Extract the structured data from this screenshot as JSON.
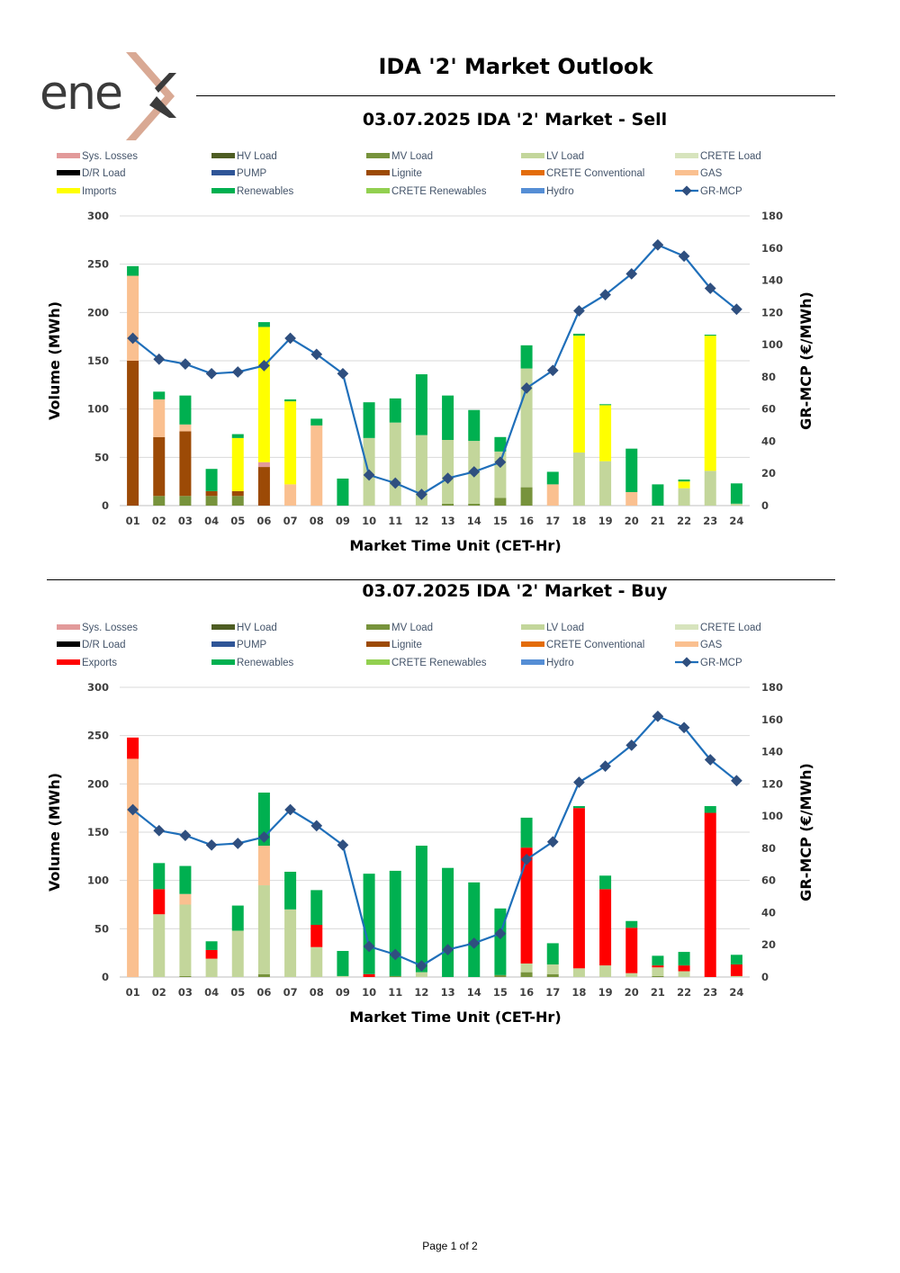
{
  "page": {
    "title": "IDA '2' Market Outlook",
    "logo_text": "enex",
    "footer": "Page 1 of 2"
  },
  "colors": {
    "Sys. Losses": "#e29a9a",
    "HV Load": "#4e5d23",
    "MV Load": "#77933c",
    "LV Load": "#c3d69b",
    "CRETE Load": "#d7e4bd",
    "D/R Load": "#000000",
    "PUMP": "#2f5597",
    "Lignite": "#9c4a06",
    "CRETE Conventional": "#e36c0a",
    "GAS": "#fac090",
    "Imports": "#ffff00",
    "Exports": "#ff0000",
    "Renewables": "#00b050",
    "CRETE Renewables": "#92d050",
    "Hydro": "#558ed5",
    "GR-MCP": "#1f6fba",
    "GR-MCP-marker": "#2f4f7f"
  },
  "chart_data": [
    {
      "type": "bar",
      "stacked": true,
      "title": "03.07.2025  IDA '2' Market - Sell",
      "legend": [
        "Sys. Losses",
        "HV Load",
        "MV Load",
        "LV Load",
        "CRETE Load",
        "D/R Load",
        "PUMP",
        "Lignite",
        "CRETE Conventional",
        "GAS",
        "Imports",
        "Renewables",
        "CRETE Renewables",
        "Hydro",
        "GR-MCP"
      ],
      "categories": [
        "01",
        "02",
        "03",
        "04",
        "05",
        "06",
        "07",
        "08",
        "09",
        "10",
        "11",
        "12",
        "13",
        "14",
        "15",
        "16",
        "17",
        "18",
        "19",
        "20",
        "21",
        "22",
        "23",
        "24"
      ],
      "xlabel": "Market Time Unit (CET-Hr)",
      "ylabel": "Volume (MWh)",
      "y2label": "GR-MCP (€/MWh)",
      "ylim": [
        0,
        300
      ],
      "yticks": [
        "0",
        "50",
        "100",
        "150",
        "200",
        "250",
        "300"
      ],
      "y2lim": [
        0,
        180
      ],
      "y2ticks": [
        "0",
        "20",
        "40",
        "60",
        "80",
        "100",
        "120",
        "140",
        "160",
        "180"
      ],
      "series": [
        {
          "name": "MV Load",
          "values": [
            0,
            10,
            10,
            10,
            10,
            0,
            0,
            0,
            0,
            0,
            0,
            0,
            2,
            2,
            8,
            19,
            0,
            0,
            0,
            0,
            0,
            0,
            0,
            0
          ]
        },
        {
          "name": "LV Load",
          "values": [
            0,
            0,
            0,
            0,
            0,
            0,
            0,
            0,
            0,
            70,
            86,
            73,
            66,
            65,
            48,
            123,
            0,
            55,
            46,
            0,
            0,
            18,
            36,
            2
          ]
        },
        {
          "name": "Lignite",
          "values": [
            150,
            61,
            67,
            5,
            5,
            40,
            0,
            0,
            0,
            0,
            0,
            0,
            0,
            0,
            0,
            0,
            0,
            0,
            0,
            0,
            0,
            0,
            0,
            0
          ]
        },
        {
          "name": "Sys. Losses",
          "values": [
            0,
            0,
            0,
            0,
            0,
            5,
            0,
            0,
            0,
            0,
            0,
            0,
            0,
            0,
            0,
            0,
            0,
            0,
            0,
            0,
            0,
            0,
            0,
            0
          ]
        },
        {
          "name": "GAS",
          "values": [
            88,
            39,
            7,
            0,
            0,
            0,
            22,
            83,
            0,
            0,
            0,
            0,
            0,
            0,
            0,
            0,
            22,
            0,
            0,
            14,
            0,
            0,
            0,
            0
          ]
        },
        {
          "name": "Imports",
          "values": [
            0,
            0,
            0,
            0,
            55,
            140,
            86,
            0,
            0,
            0,
            0,
            0,
            0,
            0,
            0,
            0,
            0,
            121,
            58,
            0,
            0,
            7,
            140,
            0
          ]
        },
        {
          "name": "Renewables",
          "values": [
            10,
            8,
            30,
            23,
            4,
            5,
            2,
            7,
            28,
            37,
            25,
            63,
            46,
            32,
            15,
            24,
            13,
            2,
            1,
            45,
            22,
            2,
            1,
            21
          ]
        }
      ],
      "line": {
        "name": "GR-MCP",
        "axis": "y2",
        "values": [
          104,
          91,
          88,
          82,
          83,
          87,
          104,
          94,
          82,
          19,
          14,
          7,
          17,
          21,
          27,
          73,
          84,
          121,
          131,
          144,
          162,
          155,
          135,
          122
        ]
      }
    },
    {
      "type": "bar",
      "stacked": true,
      "title": "03.07.2025  IDA '2' Market - Buy",
      "legend": [
        "Sys. Losses",
        "HV Load",
        "MV Load",
        "LV Load",
        "CRETE Load",
        "D/R Load",
        "PUMP",
        "Lignite",
        "CRETE Conventional",
        "GAS",
        "Exports",
        "Renewables",
        "CRETE Renewables",
        "Hydro",
        "GR-MCP"
      ],
      "categories": [
        "01",
        "02",
        "03",
        "04",
        "05",
        "06",
        "07",
        "08",
        "09",
        "10",
        "11",
        "12",
        "13",
        "14",
        "15",
        "16",
        "17",
        "18",
        "19",
        "20",
        "21",
        "22",
        "23",
        "24"
      ],
      "xlabel": "Market Time Unit (CET-Hr)",
      "ylabel": "Volume (MWh)",
      "y2label": "GR-MCP (€/MWh)",
      "ylim": [
        0,
        300
      ],
      "yticks": [
        "0",
        "50",
        "100",
        "150",
        "200",
        "250",
        "300"
      ],
      "y2lim": [
        0,
        180
      ],
      "y2ticks": [
        "0",
        "20",
        "40",
        "60",
        "80",
        "100",
        "120",
        "140",
        "160",
        "180"
      ],
      "series": [
        {
          "name": "MV Load",
          "values": [
            0,
            0,
            1,
            0,
            0,
            3,
            0,
            0,
            0,
            0,
            1,
            0,
            0,
            0,
            2,
            5,
            3,
            0,
            0,
            0,
            1,
            0,
            0,
            0
          ]
        },
        {
          "name": "LV Load",
          "values": [
            0,
            65,
            74,
            19,
            48,
            92,
            70,
            31,
            1,
            0,
            0,
            5,
            0,
            0,
            0,
            9,
            10,
            9,
            12,
            4,
            9,
            6,
            0,
            1
          ]
        },
        {
          "name": "GAS",
          "values": [
            226,
            0,
            11,
            0,
            0,
            41,
            0,
            0,
            0,
            0,
            0,
            0,
            0,
            0,
            0,
            0,
            0,
            0,
            0,
            0,
            0,
            0,
            0,
            0
          ]
        },
        {
          "name": "Exports",
          "values": [
            22,
            26,
            0,
            9,
            0,
            0,
            0,
            23,
            0,
            3,
            0,
            0,
            0,
            0,
            0,
            120,
            0,
            166,
            79,
            47,
            2,
            6,
            170,
            12
          ]
        },
        {
          "name": "Renewables",
          "values": [
            0,
            27,
            29,
            9,
            26,
            55,
            39,
            36,
            26,
            104,
            109,
            131,
            113,
            98,
            69,
            31,
            22,
            2,
            14,
            7,
            10,
            14,
            7,
            10
          ]
        }
      ],
      "line": {
        "name": "GR-MCP",
        "axis": "y2",
        "values": [
          104,
          91,
          88,
          82,
          83,
          87,
          104,
          94,
          82,
          19,
          14,
          7,
          17,
          21,
          27,
          73,
          84,
          121,
          131,
          144,
          162,
          155,
          135,
          122
        ]
      }
    }
  ]
}
